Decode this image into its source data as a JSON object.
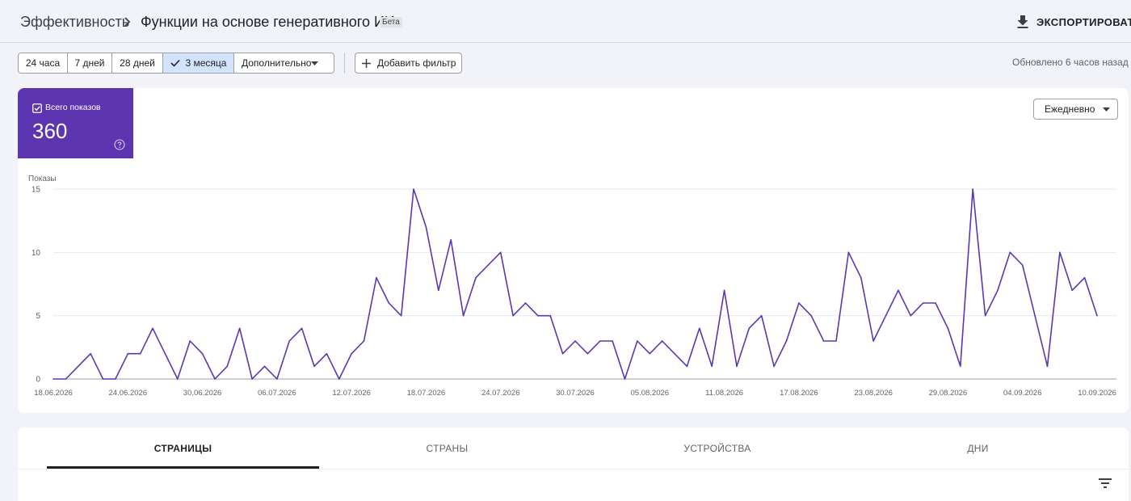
{
  "header": {
    "breadcrumb_root": "Эффективность",
    "page_title": "Функции на основе генеративного ИИ",
    "badge": "Бета",
    "export_label": "ЭКСПОРТИРОВАТЬ"
  },
  "filters": {
    "ranges": [
      "24 часа",
      "7 дней",
      "28 дней",
      "3 месяца",
      "Дополнительно"
    ],
    "selected_range": "3 месяца",
    "add_filter_label": "Добавить фильтр",
    "updated_text": "Обновлено 6 часов назад"
  },
  "metric": {
    "label": "Всего показов",
    "value": "360",
    "color": "#5e35b1"
  },
  "frequency": {
    "selected": "Ежедневно"
  },
  "chart_data": {
    "type": "line",
    "ylabel": "Показы",
    "ylim": [
      0,
      15
    ],
    "y_ticks": [
      0,
      5,
      10,
      15
    ],
    "x_start": "18.06.2026",
    "x_tick_labels": [
      "18.06.2026",
      "24.06.2026",
      "30.06.2026",
      "06.07.2026",
      "12.07.2026",
      "18.07.2026",
      "24.07.2026",
      "30.07.2026",
      "05.08.2026",
      "11.08.2026",
      "17.08.2026",
      "23.08.2026",
      "29.08.2026",
      "04.09.2026",
      "10.09.2026"
    ],
    "series": [
      {
        "color": "#5e35b1",
        "values": [
          0,
          0,
          1,
          2,
          0,
          0,
          2,
          2,
          4,
          2,
          0,
          3,
          2,
          0,
          1,
          4,
          0,
          1,
          0,
          3,
          4,
          1,
          2,
          0,
          2,
          3,
          8,
          6,
          5,
          15,
          12,
          7,
          11,
          5,
          8,
          9,
          10,
          5,
          6,
          5,
          5,
          2,
          3,
          2,
          3,
          3,
          0,
          3,
          2,
          3,
          2,
          1,
          4,
          1,
          7,
          1,
          4,
          5,
          1,
          3,
          6,
          5,
          3,
          3,
          10,
          8,
          3,
          5,
          7,
          5,
          6,
          6,
          4,
          1,
          15,
          5,
          7,
          10,
          9,
          5,
          1,
          10,
          7,
          8,
          5
        ]
      }
    ],
    "grid": true
  },
  "tabs": {
    "items": [
      "СТРАНИЦЫ",
      "СТРАНЫ",
      "УСТРОЙСТВА",
      "ДНИ"
    ],
    "active": "СТРАНИЦЫ"
  }
}
